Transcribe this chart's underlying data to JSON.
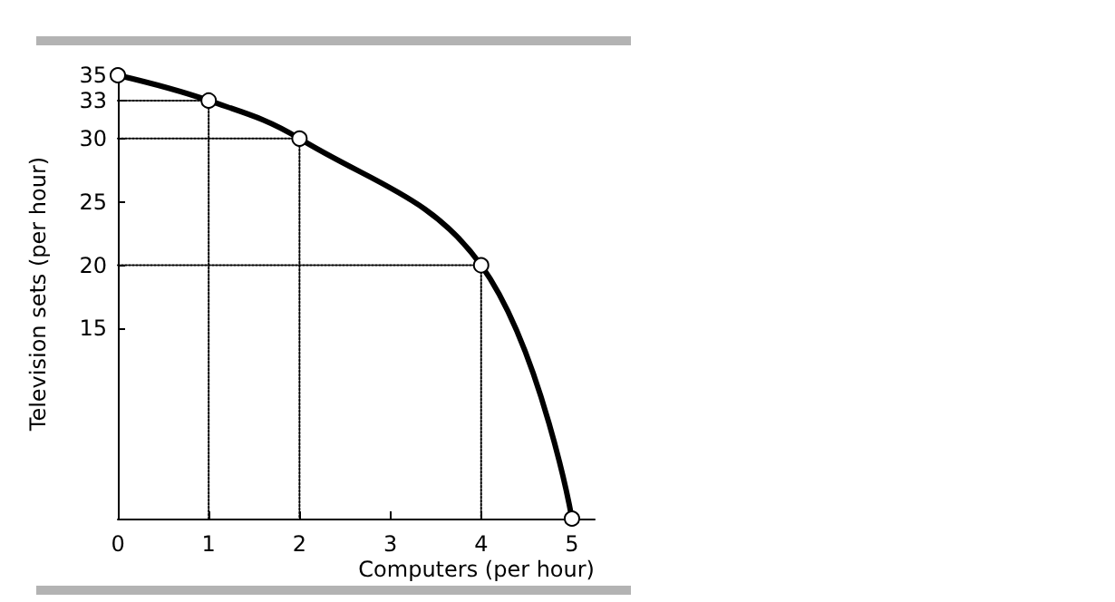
{
  "chart_data": {
    "type": "line",
    "xlabel": "Computers (per hour)",
    "ylabel": "Television sets (per hour)",
    "x": [
      0,
      1,
      2,
      4,
      5
    ],
    "series": [
      {
        "color": "#000000",
        "values": [
          35,
          33,
          30,
          20,
          0
        ]
      },
      {
        "color": "#000000",
        "x": [
          0,
          1,
          1
        ],
        "values": [
          33,
          33,
          0
        ],
        "line_style": "dotted",
        "marker": "none"
      },
      {
        "color": "#000000",
        "x": [
          0,
          2,
          2
        ],
        "values": [
          30,
          30,
          0
        ],
        "line_style": "dotted",
        "marker": "none"
      },
      {
        "color": "#000000",
        "x": [
          0,
          4,
          4
        ],
        "values": [
          20,
          20,
          0
        ],
        "line_style": "dotted",
        "marker": "none"
      }
    ],
    "xlim": [
      0,
      5.25
    ],
    "xticks": [
      0,
      1,
      2,
      3,
      4,
      5
    ],
    "ylim": [
      0,
      35.5
    ],
    "yticks": [
      15,
      20,
      25,
      30,
      33,
      35
    ],
    "marker": "circle",
    "line_style": "solid"
  }
}
